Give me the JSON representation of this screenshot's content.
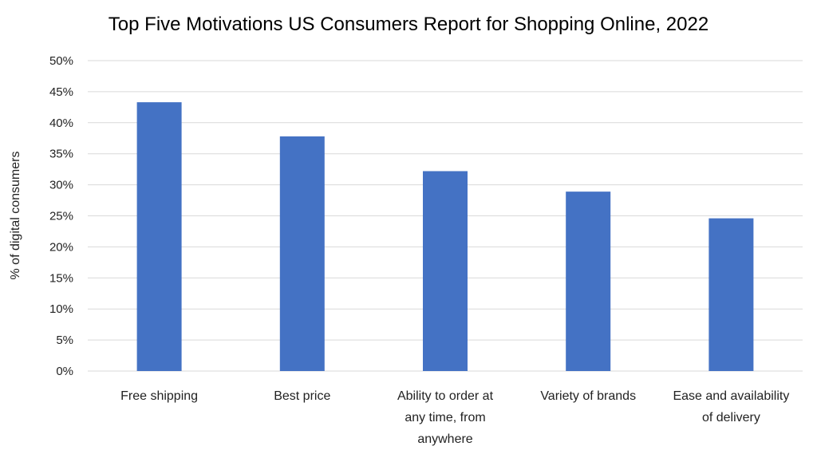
{
  "chart_data": {
    "type": "bar",
    "title": "Top Five Motivations US Consumers Report for Shopping Online, 2022",
    "xlabel": "",
    "ylabel": "% of digital consumers",
    "categories": [
      [
        "Free shipping"
      ],
      [
        "Best price"
      ],
      [
        "Ability to order at",
        "any time, from",
        "anywhere"
      ],
      [
        "Variety of brands"
      ],
      [
        "Ease and availability",
        "of delivery"
      ]
    ],
    "values": [
      43.3,
      37.8,
      32.2,
      28.9,
      24.6
    ],
    "ylim": [
      0,
      50
    ],
    "yticks": [
      "0%",
      "5%",
      "10%",
      "15%",
      "20%",
      "25%",
      "30%",
      "35%",
      "40%",
      "45%",
      "50%"
    ],
    "grid": true,
    "bar_color": "#4472c4"
  }
}
